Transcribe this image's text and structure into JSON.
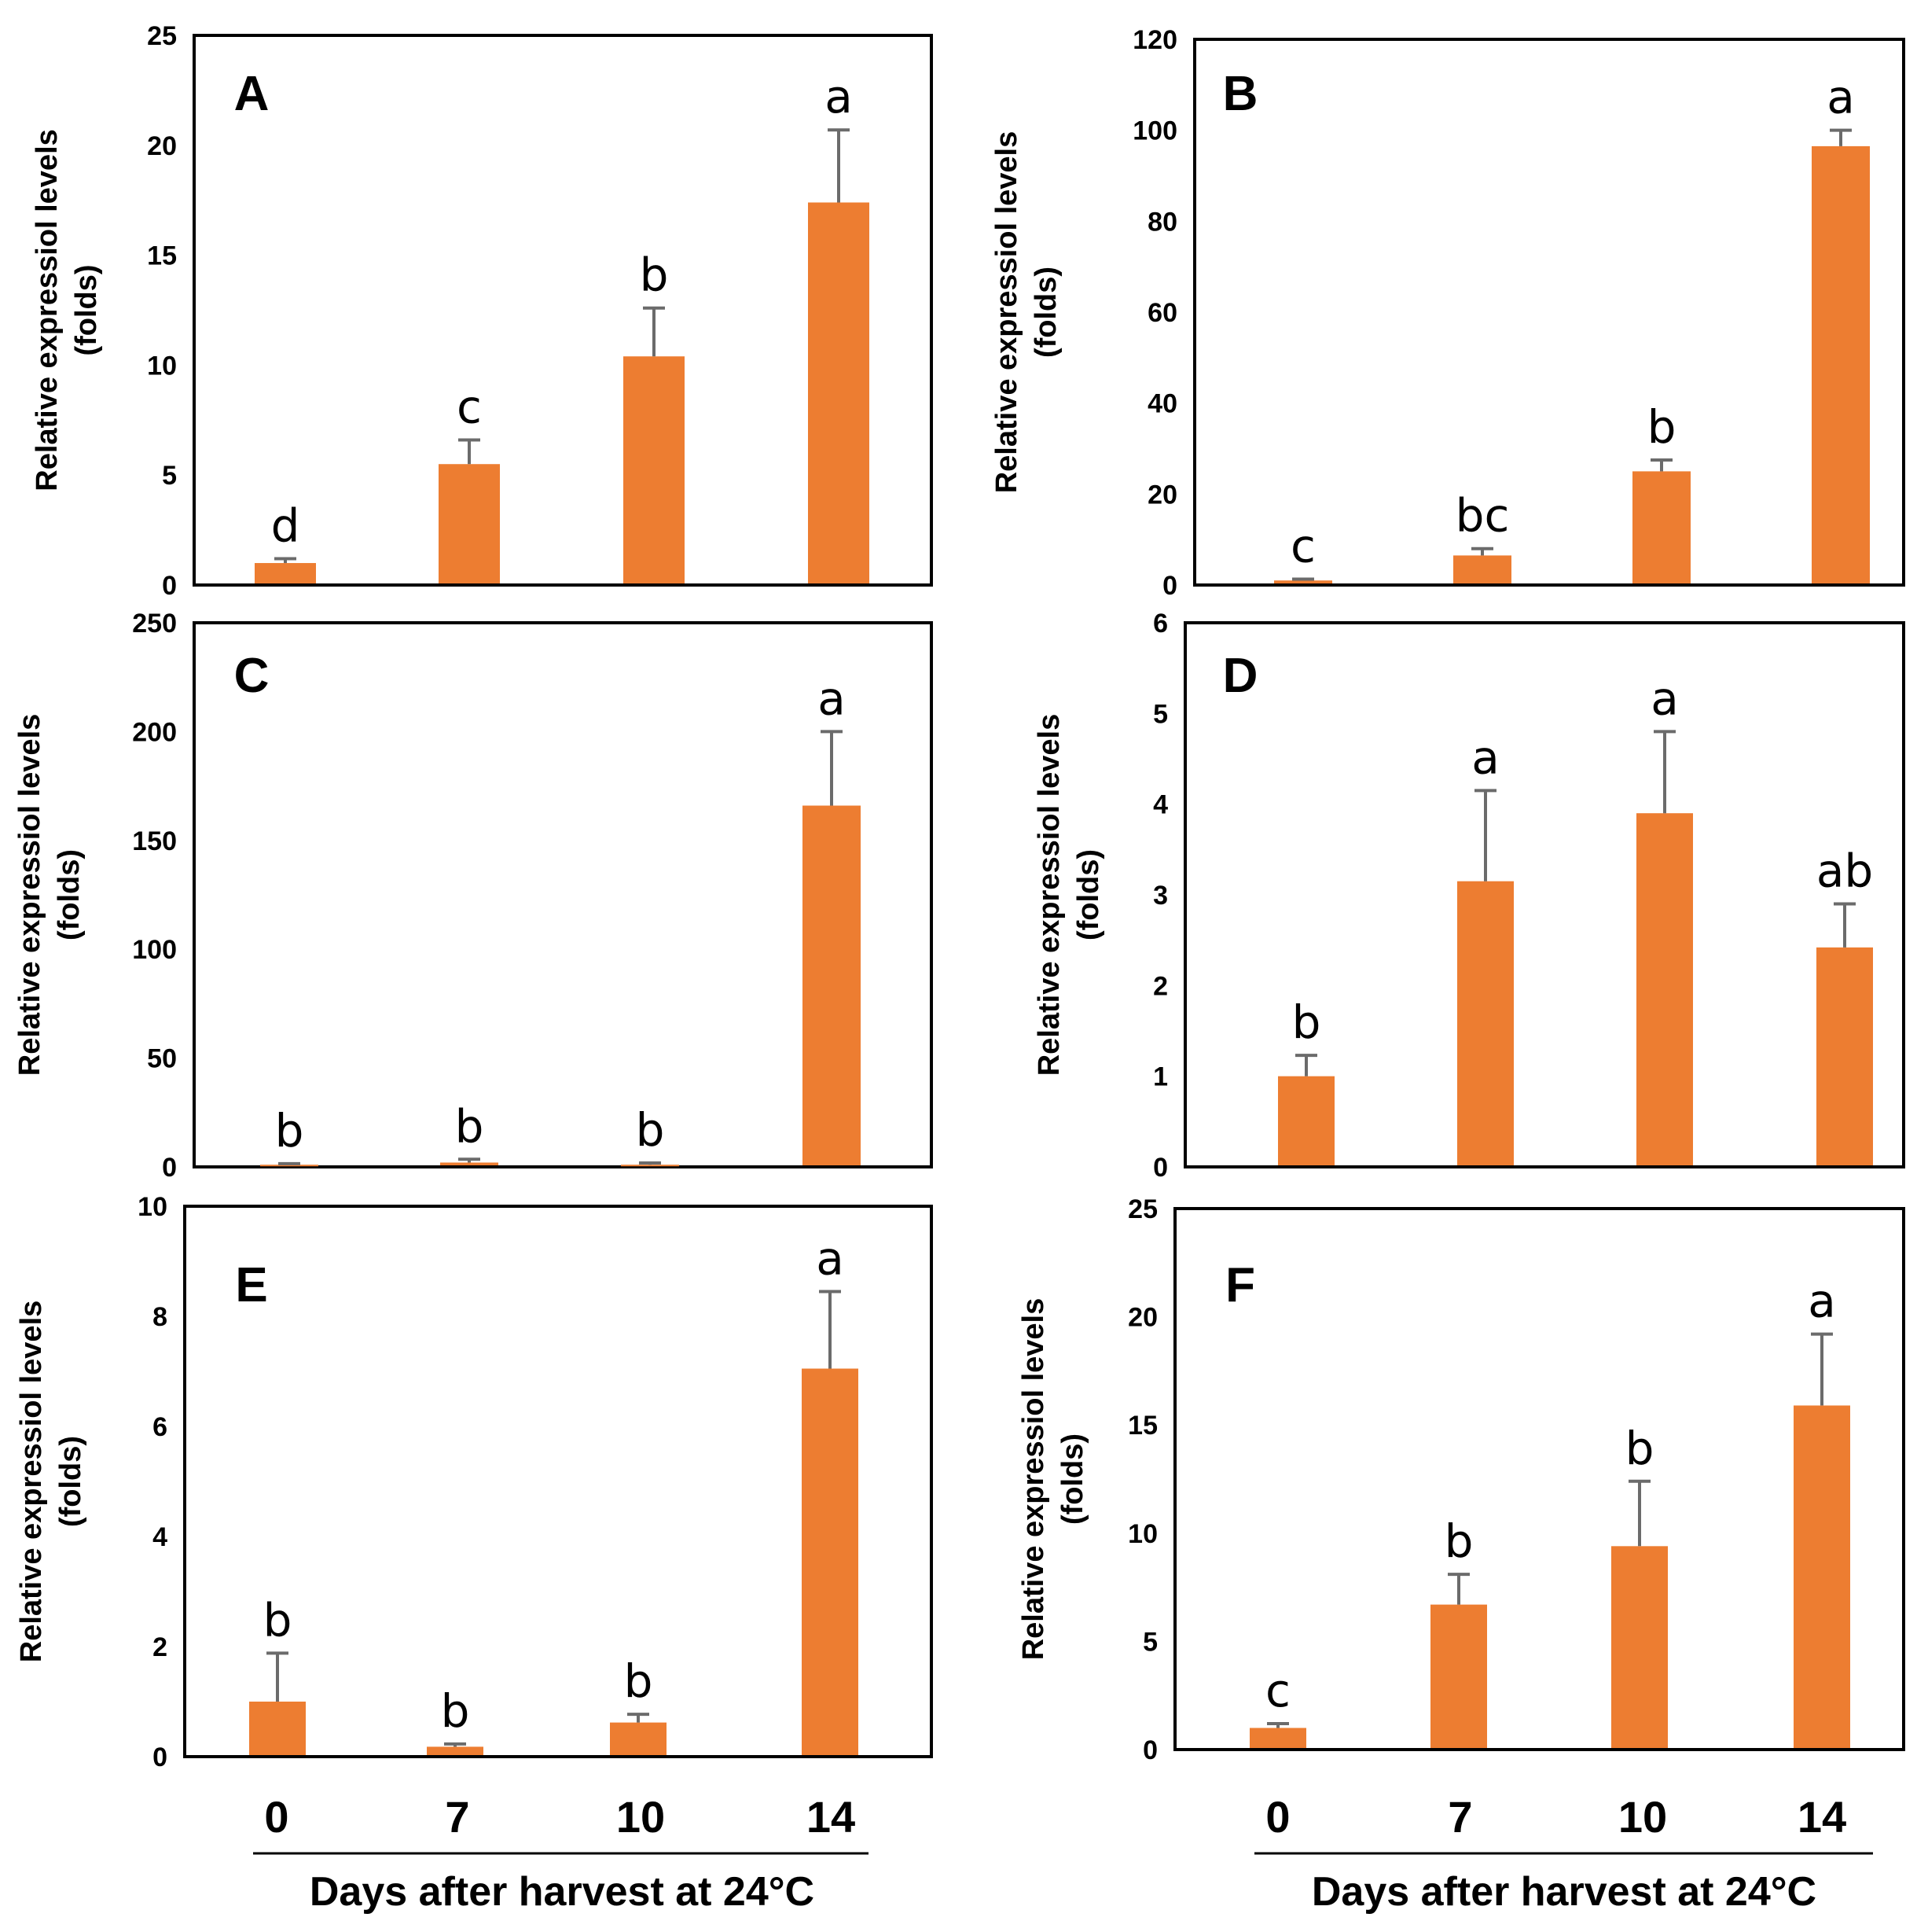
{
  "figure": {
    "x_title_left": "Days after harvest at 24°C",
    "x_title_right": "Days after harvest at 24°C",
    "x_categories": [
      "0",
      "7",
      "10",
      "14"
    ]
  },
  "colors": {
    "bar": "#ED7D31",
    "error": "#6b6b6b",
    "frame": "#000000"
  },
  "chart_data": [
    {
      "panel": "A",
      "type": "bar",
      "ylabel_line1": "Relative expressiol levels",
      "ylabel_line2": "(folds)",
      "categories": [
        "0",
        "7",
        "10",
        "14"
      ],
      "values": [
        1.0,
        5.5,
        10.4,
        17.4
      ],
      "errors": [
        0.2,
        1.1,
        2.2,
        3.3
      ],
      "significance": [
        "d",
        "c",
        "b",
        "a"
      ],
      "ylim": [
        0,
        25
      ],
      "yticks": [
        "0",
        "5",
        "10",
        "15",
        "20",
        "25"
      ]
    },
    {
      "panel": "B",
      "type": "bar",
      "ylabel_line1": "Relative expressiol levels",
      "ylabel_line2": "(folds)",
      "categories": [
        "0",
        "7",
        "10",
        "14"
      ],
      "values": [
        1.0,
        6.5,
        25.0,
        96.5
      ],
      "errors": [
        0.3,
        1.5,
        2.5,
        3.5
      ],
      "significance": [
        "c",
        "bc",
        "b",
        "a"
      ],
      "ylim": [
        0,
        120
      ],
      "yticks": [
        "0",
        "20",
        "40",
        "60",
        "80",
        "100",
        "120"
      ]
    },
    {
      "panel": "C",
      "type": "bar",
      "ylabel_line1": "Relative expressiol levels",
      "ylabel_line2": "(folds)",
      "categories": [
        "0",
        "7",
        "10",
        "14"
      ],
      "values": [
        1.0,
        2.0,
        1.0,
        166.0
      ],
      "errors": [
        0.5,
        1.5,
        0.8,
        34.0
      ],
      "significance": [
        "b",
        "b",
        "b",
        "a"
      ],
      "ylim": [
        0,
        250
      ],
      "yticks": [
        "0",
        "50",
        "100",
        "150",
        "200",
        "250"
      ]
    },
    {
      "panel": "D",
      "type": "bar",
      "ylabel_line1": "Relative expressiol levels",
      "ylabel_line2": "(folds)",
      "categories": [
        "0",
        "7",
        "10",
        "14"
      ],
      "values": [
        1.0,
        3.15,
        3.9,
        2.42
      ],
      "errors": [
        0.23,
        1.0,
        0.9,
        0.48
      ],
      "significance": [
        "b",
        "a",
        "a",
        "ab"
      ],
      "ylim": [
        0,
        6
      ],
      "yticks": [
        "0",
        "1",
        "2",
        "3",
        "4",
        "5",
        "6"
      ]
    },
    {
      "panel": "E",
      "type": "bar",
      "ylabel_line1": "Relative expressiol levels",
      "ylabel_line2": "(folds)",
      "categories": [
        "0",
        "7",
        "10",
        "14"
      ],
      "values": [
        1.0,
        0.18,
        0.62,
        7.05
      ],
      "errors": [
        0.88,
        0.05,
        0.15,
        1.4
      ],
      "significance": [
        "b",
        "b",
        "b",
        "a"
      ],
      "ylim": [
        0,
        10
      ],
      "yticks": [
        "0",
        "2",
        "4",
        "6",
        "8",
        "10"
      ]
    },
    {
      "panel": "F",
      "type": "bar",
      "ylabel_line1": "Relative expressiol levels",
      "ylabel_line2": "(folds)",
      "categories": [
        "0",
        "7",
        "10",
        "14"
      ],
      "values": [
        1.0,
        6.7,
        9.4,
        15.9
      ],
      "errors": [
        0.2,
        1.4,
        3.0,
        3.3
      ],
      "significance": [
        "c",
        "b",
        "b",
        "a"
      ],
      "ylim": [
        0,
        25
      ],
      "yticks": [
        "0",
        "5",
        "10",
        "15",
        "20",
        "25"
      ]
    }
  ]
}
